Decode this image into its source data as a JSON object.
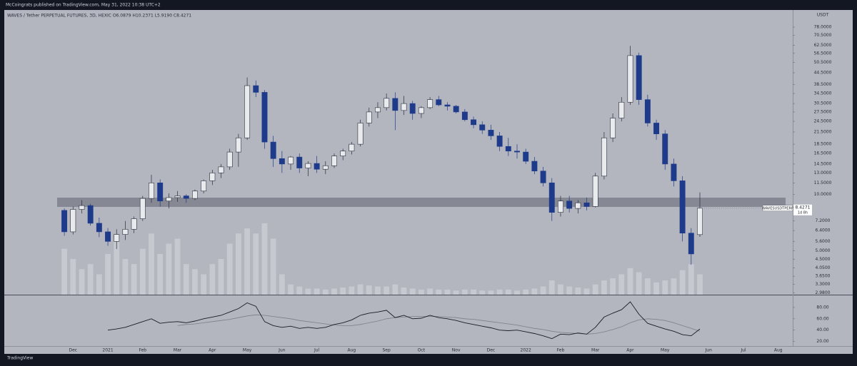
{
  "publisher": "McCoingrats published on TradingView.com, May 31, 2022 10:38 UTC+2",
  "footer": "TradingView",
  "chart_data": {
    "type": "candlestick",
    "title": "WAVES / Tether PERPETUAL FUTURES, 3D, HEXIC O6.0879 H10.2371 L5.9190 C8.4271",
    "y_unit": "USDT",
    "symbol": "WAVESUSDTPERP",
    "countdown": "1d 8h",
    "log_scale": true,
    "up_color": "#e9eaee",
    "down_color": "#1e3a8a",
    "volume_color": "#c9cbd1",
    "categories": [
      null,
      "Dec",
      null,
      null,
      null,
      "2021",
      null,
      null,
      null,
      "Feb",
      null,
      null,
      null,
      "Mar",
      null,
      null,
      null,
      "Apr",
      null,
      null,
      null,
      "May",
      null,
      null,
      null,
      "Jun",
      null,
      null,
      null,
      "Jul",
      null,
      null,
      null,
      "Aug",
      null,
      null,
      null,
      "Sep",
      null,
      null,
      null,
      "Oct",
      null,
      null,
      null,
      "Nov",
      null,
      null,
      null,
      "Dec",
      null,
      null,
      null,
      "2022",
      null,
      null,
      null,
      "Feb",
      null,
      null,
      null,
      "Mar",
      null,
      null,
      null,
      "Apr",
      null,
      null,
      null,
      "May",
      null,
      null,
      null,
      null,
      "Jun",
      null,
      null,
      null,
      "Jul",
      null,
      null,
      null,
      "Aug",
      null
    ],
    "open": [
      8.2,
      6.3,
      8.3,
      8.7,
      7.0,
      6.3,
      5.6,
      6.1,
      6.5,
      7.4,
      9.5,
      11.5,
      9.2,
      9.6,
      9.8,
      9.5,
      10.4,
      11.8,
      13.0,
      14.0,
      16.8,
      20.0,
      38.0,
      35.0,
      19.0,
      15.5,
      14.5,
      15.8,
      13.8,
      14.6,
      13.6,
      14.2,
      16.0,
      17.0,
      18.5,
      24.0,
      27.5,
      29.0,
      32.5,
      28.0,
      30.5,
      27.0,
      29.0,
      32.0,
      30.0,
      29.5,
      27.5,
      25.0,
      23.5,
      22.0,
      20.5,
      18.0,
      17.0,
      16.8,
      15.0,
      13.3,
      11.5,
      8.0,
      9.2,
      8.4,
      9.0,
      8.6,
      12.5,
      20.0,
      25.5,
      31.0,
      55.0,
      32.0,
      24.0,
      21.0,
      14.5,
      11.8,
      6.2,
      6.0879,
      null,
      null,
      null,
      null,
      null,
      null,
      null,
      null,
      null,
      null
    ],
    "high": [
      8.4,
      8.6,
      9.3,
      8.9,
      7.5,
      6.6,
      6.5,
      7.2,
      7.6,
      9.8,
      12.7,
      12.0,
      10.1,
      10.4,
      10.0,
      10.6,
      12.0,
      13.5,
      14.5,
      17.5,
      21.0,
      42.0,
      40.5,
      36.0,
      20.5,
      17.0,
      16.0,
      16.5,
      15.0,
      16.0,
      15.0,
      16.5,
      17.5,
      19.0,
      25.0,
      29.0,
      31.0,
      34.5,
      35.0,
      33.5,
      31.5,
      29.5,
      33.0,
      33.5,
      31.0,
      30.0,
      28.5,
      26.0,
      24.5,
      23.5,
      21.5,
      20.0,
      18.5,
      17.5,
      15.8,
      14.0,
      12.2,
      9.8,
      9.8,
      9.3,
      9.6,
      13.0,
      21.5,
      27.0,
      33.0,
      62.0,
      57.0,
      34.0,
      25.0,
      22.0,
      15.5,
      12.5,
      6.6,
      10.2371,
      null,
      null,
      null,
      null,
      null,
      null,
      null,
      null,
      null,
      null
    ],
    "low": [
      6.0,
      6.1,
      7.9,
      6.8,
      5.9,
      5.3,
      5.1,
      5.7,
      6.2,
      7.2,
      9.0,
      8.6,
      8.4,
      9.1,
      9.0,
      9.3,
      10.1,
      11.2,
      12.2,
      13.5,
      14.0,
      19.5,
      33.0,
      17.5,
      14.0,
      13.0,
      13.5,
      13.0,
      12.5,
      13.0,
      12.8,
      13.8,
      15.2,
      16.3,
      18.0,
      23.0,
      25.5,
      28.0,
      22.0,
      26.5,
      25.0,
      25.5,
      28.5,
      29.5,
      28.0,
      27.0,
      24.5,
      22.5,
      21.0,
      19.5,
      17.0,
      16.0,
      15.5,
      14.5,
      12.8,
      11.0,
      7.2,
      7.6,
      8.0,
      7.9,
      8.2,
      8.5,
      12.0,
      19.0,
      24.5,
      30.0,
      30.0,
      23.0,
      19.5,
      13.5,
      11.0,
      5.6,
      4.2,
      5.919,
      null,
      null,
      null,
      null,
      null,
      null,
      null,
      null,
      null,
      null
    ],
    "close": [
      6.3,
      8.3,
      8.7,
      7.0,
      6.3,
      5.6,
      6.1,
      6.5,
      7.4,
      9.5,
      11.5,
      9.2,
      9.6,
      9.8,
      9.5,
      10.4,
      11.8,
      13.0,
      14.0,
      16.8,
      20.0,
      38.0,
      35.0,
      19.0,
      15.5,
      14.5,
      15.8,
      13.8,
      14.6,
      13.6,
      14.2,
      16.0,
      17.0,
      18.5,
      24.0,
      27.5,
      29.0,
      32.5,
      28.0,
      30.5,
      27.0,
      29.0,
      32.0,
      30.0,
      29.5,
      27.5,
      25.0,
      23.5,
      22.0,
      20.5,
      18.0,
      17.0,
      16.8,
      15.0,
      13.3,
      11.5,
      8.0,
      9.2,
      8.4,
      9.0,
      8.6,
      12.5,
      20.0,
      25.5,
      31.0,
      55.0,
      32.0,
      24.0,
      21.0,
      14.5,
      11.8,
      6.2,
      4.8,
      8.4271,
      null,
      null,
      null,
      null,
      null,
      null,
      null,
      null,
      null,
      null
    ],
    "volume": [
      45,
      35,
      25,
      30,
      20,
      40,
      55,
      35,
      30,
      45,
      60,
      40,
      50,
      55,
      30,
      25,
      20,
      30,
      35,
      50,
      60,
      65,
      60,
      70,
      55,
      20,
      10,
      8,
      6,
      6,
      5,
      6,
      7,
      8,
      10,
      9,
      8,
      8,
      10,
      7,
      6,
      5,
      6,
      5,
      5,
      4,
      5,
      5,
      4,
      4,
      5,
      5,
      4,
      5,
      6,
      8,
      14,
      10,
      8,
      7,
      6,
      10,
      14,
      16,
      20,
      26,
      22,
      16,
      12,
      14,
      16,
      24,
      30,
      20,
      null,
      null,
      null,
      null,
      null,
      null,
      null,
      null,
      null,
      null
    ],
    "ylim": [
      2.91,
      93
    ],
    "yticks": [
      {
        "value": 78,
        "label": "78.0000"
      },
      {
        "value": 70.5,
        "label": "70.5000"
      },
      {
        "value": 62.5,
        "label": "62.5000"
      },
      {
        "value": 56.5,
        "label": "56.5000"
      },
      {
        "value": 50.5,
        "label": "50.5000"
      },
      {
        "value": 44.5,
        "label": "44.5000"
      },
      {
        "value": 38.5,
        "label": "38.5000"
      },
      {
        "value": 34.5,
        "label": "34.5000"
      },
      {
        "value": 30.5,
        "label": "30.5000"
      },
      {
        "value": 27.5,
        "label": "27.5000"
      },
      {
        "value": 24.5,
        "label": "24.5000"
      },
      {
        "value": 21.5,
        "label": "21.5000"
      },
      {
        "value": 18.5,
        "label": "18.5000"
      },
      {
        "value": 16.5,
        "label": "16.5000"
      },
      {
        "value": 14.5,
        "label": "14.5000"
      },
      {
        "value": 13,
        "label": "13.0000"
      },
      {
        "value": 11.5,
        "label": "11.5000"
      },
      {
        "value": 10,
        "label": "10.0000"
      },
      {
        "value": 7.2,
        "label": "7.2000"
      },
      {
        "value": 6.4,
        "label": "6.4000"
      },
      {
        "value": 5.6,
        "label": "5.6000"
      },
      {
        "value": 5,
        "label": "5.0000"
      },
      {
        "value": 4.5,
        "label": "4.5000"
      },
      {
        "value": 4.05,
        "label": "4.0500"
      },
      {
        "value": 3.65,
        "label": "3.6500"
      },
      {
        "value": 3.3,
        "label": "3.3000"
      },
      {
        "value": 2.98,
        "label": "2.9800"
      }
    ],
    "rsi": {
      "color": "#1a1c22",
      "ma_color": "#7d7f87",
      "ylim": [
        12,
        100
      ],
      "yticks": [
        {
          "value": 80,
          "label": "80.00"
        },
        {
          "value": 60,
          "label": "60.00"
        },
        {
          "value": 40,
          "label": "40.00"
        },
        {
          "value": 20,
          "label": "20.00"
        }
      ],
      "values": [
        null,
        null,
        null,
        null,
        null,
        40,
        42,
        45,
        50,
        55,
        60,
        52,
        54,
        55,
        53,
        56,
        60,
        63,
        66,
        72,
        78,
        88,
        82,
        55,
        48,
        45,
        47,
        43,
        45,
        43,
        45,
        50,
        53,
        58,
        66,
        70,
        72,
        75,
        62,
        66,
        60,
        61,
        66,
        62,
        60,
        57,
        53,
        50,
        47,
        44,
        40,
        39,
        40,
        37,
        34,
        30,
        25,
        33,
        32,
        35,
        33,
        45,
        63,
        70,
        76,
        90,
        68,
        52,
        47,
        42,
        38,
        32,
        30,
        42,
        null,
        null,
        null,
        null,
        null,
        null,
        null,
        null,
        null,
        null
      ],
      "ma": [
        null,
        null,
        null,
        null,
        null,
        null,
        null,
        null,
        null,
        null,
        null,
        null,
        null,
        48,
        50,
        51,
        53,
        55,
        57,
        59,
        62,
        65,
        67,
        66,
        64,
        62,
        60,
        57,
        55,
        53,
        51,
        49,
        48,
        48,
        50,
        53,
        56,
        60,
        62,
        63,
        64,
        64,
        64,
        64,
        63,
        62,
        60,
        59,
        57,
        55,
        53,
        51,
        49,
        46,
        43,
        41,
        38,
        36,
        35,
        34,
        33,
        34,
        37,
        41,
        46,
        53,
        58,
        60,
        59,
        57,
        53,
        48,
        43,
        38,
        null,
        null,
        null,
        null,
        null,
        null,
        null,
        null,
        null,
        null
      ]
    }
  }
}
